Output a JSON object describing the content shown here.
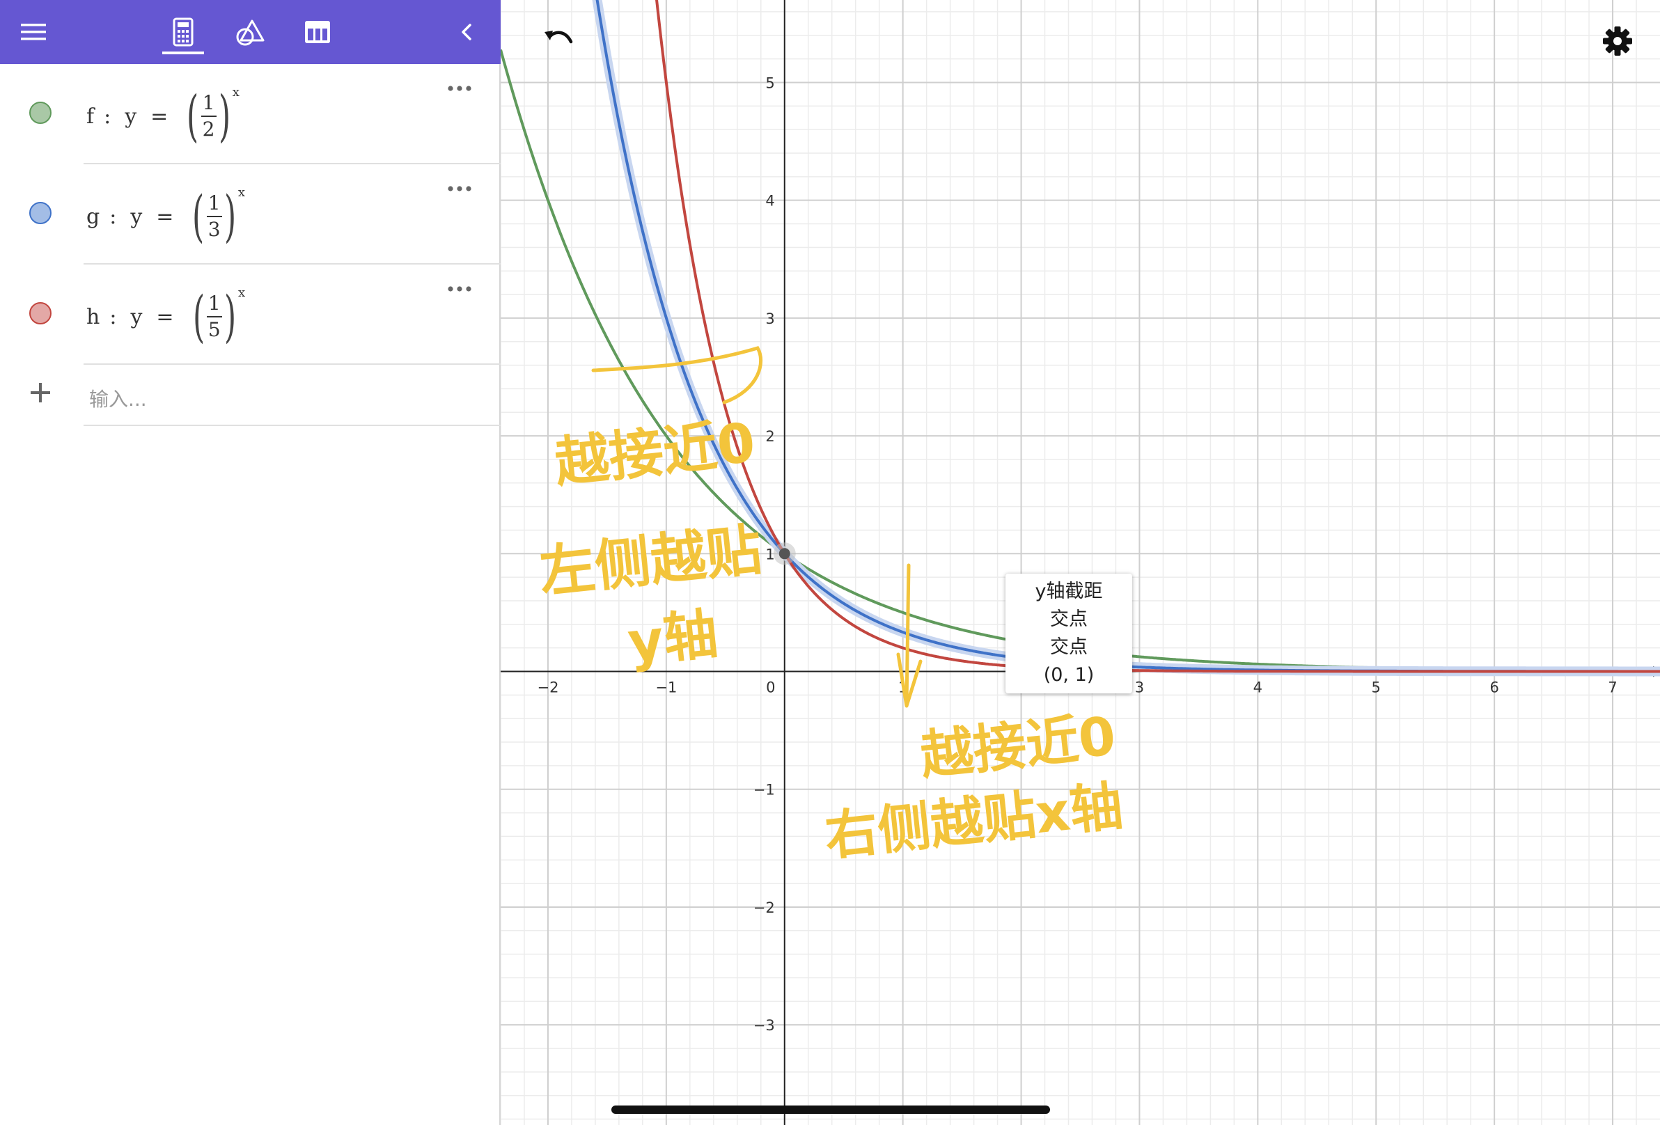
{
  "toolbar": {
    "menu_icon": "hamburger-menu-icon",
    "tabs": [
      {
        "icon": "calculator-icon",
        "active": true
      },
      {
        "icon": "geometry-icon",
        "active": false
      },
      {
        "icon": "table-icon",
        "active": false
      }
    ],
    "collapse_icon": "chevron-left-icon",
    "accent": "#6557d2"
  },
  "algebra": {
    "items": [
      {
        "name": "f",
        "colon": ":",
        "var": "y",
        "eq": "=",
        "num": "1",
        "den": "2",
        "exp": "x",
        "color": "#609a5c",
        "fill": "#a9c8a6"
      },
      {
        "name": "g",
        "colon": ":",
        "var": "y",
        "eq": "=",
        "num": "1",
        "den": "3",
        "exp": "x",
        "color": "#3f72c8",
        "fill": "#a3bde6"
      },
      {
        "name": "h",
        "colon": ":",
        "var": "y",
        "eq": "=",
        "num": "1",
        "den": "5",
        "exp": "x",
        "color": "#c2463f",
        "fill": "#e3a8a6"
      }
    ],
    "input_placeholder": "输入..."
  },
  "graph": {
    "x_ticks": [
      "−2",
      "−1",
      "0",
      "1",
      "2",
      "3",
      "4",
      "5",
      "6",
      "7"
    ],
    "y_ticks": [
      "5",
      "4",
      "3",
      "2",
      "1",
      "−1",
      "−2",
      "−3"
    ],
    "xlim": [
      -2.4,
      7.4
    ],
    "ylim": [
      -3.85,
      5.7
    ],
    "grid": true,
    "functions": [
      {
        "name": "f",
        "base": 0.5,
        "color": "#609a5c"
      },
      {
        "name": "g",
        "base": 0.3333,
        "color": "#3f72c8"
      },
      {
        "name": "h",
        "base": 0.2,
        "color": "#c2463f"
      }
    ],
    "intercept_point": {
      "x": 0,
      "y": 1
    },
    "tooltip": [
      "y轴截距",
      "交点",
      "交点",
      "(0, 1)"
    ]
  },
  "annotations": {
    "color": "#f3c43b",
    "left_text": [
      "越接近0",
      "左侧越贴",
      "y轴"
    ],
    "right_text": [
      "越接近0",
      "右侧越贴x轴"
    ]
  },
  "chart_data": {
    "type": "line",
    "series": [
      {
        "name": "f",
        "formula": "y=(1/2)^x"
      },
      {
        "name": "g",
        "formula": "y=(1/3)^x"
      },
      {
        "name": "h",
        "formula": "y=(1/5)^x"
      }
    ],
    "xlim": [
      -2.4,
      7.4
    ],
    "ylim": [
      -3.85,
      5.7
    ],
    "grid": true
  }
}
